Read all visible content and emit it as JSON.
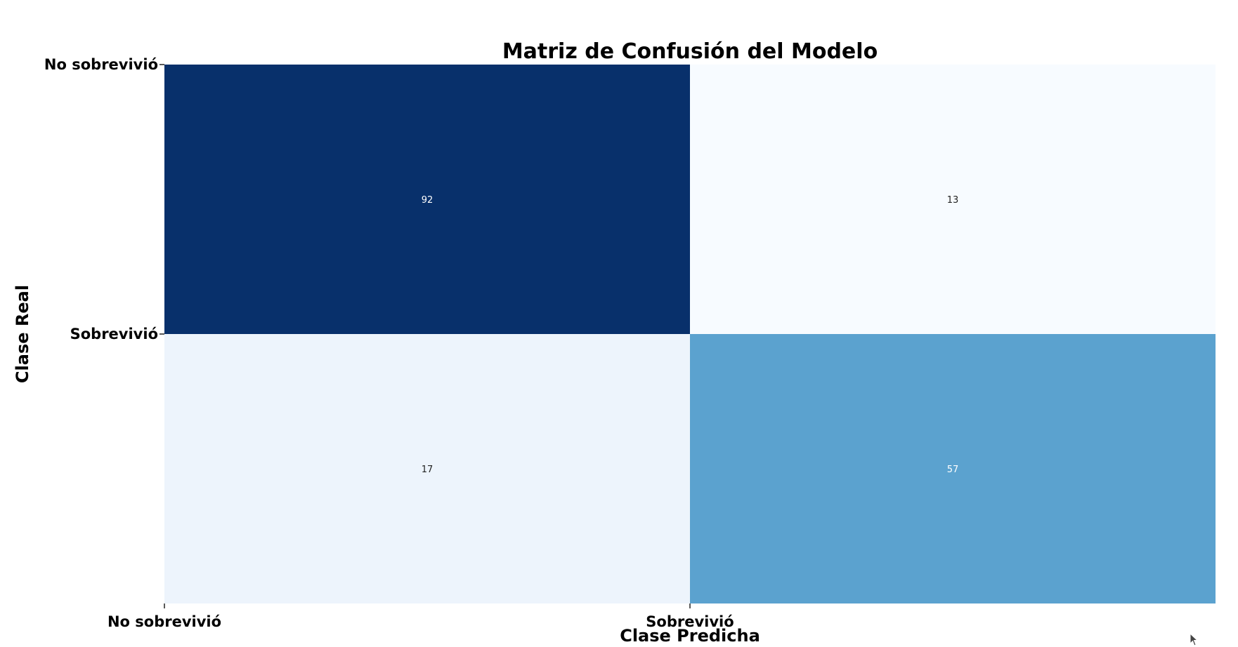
{
  "chart_data": {
    "type": "heatmap",
    "title": "Matriz de Confusión del Modelo",
    "xlabel": "Clase Predicha",
    "ylabel": "Clase Real",
    "x_categories": [
      "No sobrevivió",
      "Sobrevivió"
    ],
    "y_categories": [
      "No sobrevivió",
      "Sobrevivió"
    ],
    "values": [
      [
        92,
        13
      ],
      [
        17,
        57
      ]
    ],
    "colormap": "Blues",
    "cell_colors": [
      [
        "#08306b",
        "#f7fbff"
      ],
      [
        "#edf4fc",
        "#5ba2cf"
      ]
    ],
    "text_colors": [
      [
        "#ffffff",
        "#222222"
      ],
      [
        "#222222",
        "#ffffff"
      ]
    ],
    "colorbar": false
  }
}
